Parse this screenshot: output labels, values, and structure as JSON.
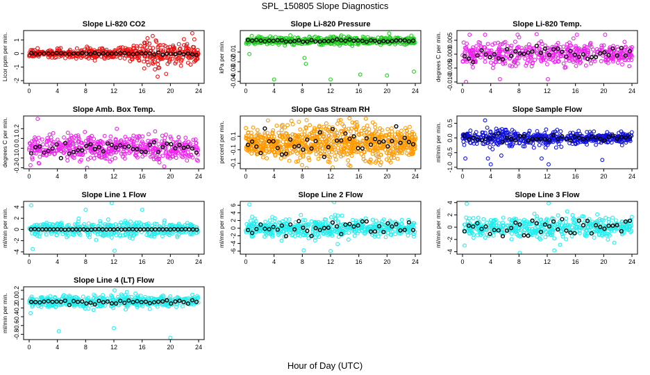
{
  "figure": {
    "title": "SPL_150805  Slope Diagnostics",
    "xlabel": "Hour of Day (UTC)"
  },
  "colors": {
    "co2": "#ee1111",
    "pressure": "#22cc22",
    "temp_li820": "#ee22ee",
    "temp_box": "#ee22ee",
    "rh": "#ff9900",
    "sample_flow": "#1111dd",
    "line1": "#22eeee",
    "line2": "#22eeee",
    "line3": "#22eeee",
    "line4": "#22eeee",
    "mean_marker": "#000000"
  },
  "chart_data": [
    {
      "id": "co2",
      "type": "scatter",
      "title": "Slope Li-820 CO2",
      "ylabel": "Licor ppm per min.",
      "xlim": [
        0,
        24
      ],
      "xticks": [
        0,
        4,
        8,
        12,
        16,
        20,
        24
      ],
      "ylim": [
        -2.2,
        1.7
      ],
      "yticks": [
        -2,
        -1,
        0,
        1
      ],
      "series": [
        {
          "name": "samples",
          "color_key": "co2",
          "n": 480,
          "x_range": [
            0,
            24
          ],
          "spread_envelope": [
            [
              0,
              0.3
            ],
            [
              6,
              0.35
            ],
            [
              12,
              0.4
            ],
            [
              15,
              0.7
            ],
            [
              18,
              1.0
            ],
            [
              22,
              0.9
            ],
            [
              24,
              0.5
            ]
          ],
          "outliers": [
            [
              17.5,
              1.3
            ],
            [
              23.1,
              1.5
            ],
            [
              18.2,
              -1.7
            ],
            [
              19.4,
              -1.5
            ],
            [
              16.3,
              -1.1
            ],
            [
              21.5,
              -0.9
            ],
            [
              23.4,
              -0.6
            ]
          ]
        },
        {
          "name": "hourly mean",
          "color_key": "mean_marker",
          "n": 40,
          "x_range": [
            0,
            24
          ],
          "spread_envelope": [
            [
              0,
              0.05
            ],
            [
              24,
              0.1
            ]
          ]
        }
      ]
    },
    {
      "id": "pressure",
      "type": "scatter",
      "title": "Slope Li-820 Pressure",
      "ylabel": "kPa per min.",
      "xlim": [
        0,
        24
      ],
      "xticks": [
        0,
        4,
        8,
        12,
        16,
        20,
        24
      ],
      "ylim": [
        -0.042,
        0.012
      ],
      "yticks": [
        -0.04,
        -0.03,
        -0.02,
        -0.01
      ],
      "series": [
        {
          "name": "samples",
          "color_key": "pressure",
          "n": 520,
          "x_range": [
            0,
            24
          ],
          "offset": 0.0015,
          "spread_envelope": [
            [
              0,
              0.004
            ],
            [
              12,
              0.005
            ],
            [
              24,
              0.004
            ]
          ],
          "outliers": [
            [
              0.5,
              -0.012
            ],
            [
              4.0,
              -0.038
            ],
            [
              8.3,
              -0.016
            ],
            [
              8.5,
              -0.022
            ],
            [
              12.0,
              -0.038
            ],
            [
              16.2,
              -0.033
            ],
            [
              20.0,
              -0.034
            ],
            [
              23.8,
              -0.03
            ],
            [
              20.3,
              0.009
            ],
            [
              6.3,
              0.007
            ]
          ]
        },
        {
          "name": "hourly mean",
          "color_key": "mean_marker",
          "n": 40,
          "x_range": [
            0,
            24
          ],
          "offset": 0.0015,
          "spread_envelope": [
            [
              0,
              0.0015
            ],
            [
              24,
              0.0015
            ]
          ]
        }
      ]
    },
    {
      "id": "temp_li820",
      "type": "scatter",
      "title": "Slope Li-820 Temp.",
      "ylabel": "degrees C per min.",
      "xlim": [
        0,
        24
      ],
      "xticks": [
        0,
        4,
        8,
        12,
        16,
        20,
        24
      ],
      "ylim": [
        -0.0105,
        0.0085
      ],
      "yticks": [
        -0.01,
        -0.005,
        0,
        0.005
      ],
      "series": [
        {
          "name": "samples",
          "color_key": "temp_li820",
          "n": 460,
          "x_range": [
            0,
            24
          ],
          "spread_envelope": [
            [
              0,
              0.005
            ],
            [
              12,
              0.005
            ],
            [
              24,
              0.004
            ]
          ],
          "outliers": [
            [
              0.5,
              -0.01
            ],
            [
              1.0,
              0.007
            ],
            [
              3.2,
              0.007
            ],
            [
              7.8,
              0.007
            ],
            [
              5.3,
              -0.009
            ],
            [
              12.1,
              -0.009
            ],
            [
              16.2,
              0.007
            ],
            [
              20.2,
              0.007
            ]
          ]
        },
        {
          "name": "hourly mean",
          "color_key": "mean_marker",
          "n": 40,
          "x_range": [
            0,
            24
          ],
          "spread_envelope": [
            [
              0,
              0.003
            ],
            [
              24,
              0.003
            ]
          ]
        }
      ]
    },
    {
      "id": "temp_box",
      "type": "scatter",
      "title": "Slope Amb. Box Temp.",
      "ylabel": "degrees C per min.",
      "xlim": [
        0,
        24
      ],
      "xticks": [
        0,
        4,
        8,
        12,
        16,
        20,
        24
      ],
      "ylim": [
        -0.21,
        0.33
      ],
      "yticks": [
        -0.2,
        -0.1,
        0,
        0.1,
        0.2
      ],
      "series": [
        {
          "name": "samples",
          "color_key": "temp_box",
          "n": 520,
          "x_range": [
            0,
            24
          ],
          "spread_envelope": [
            [
              0,
              0.14
            ],
            [
              12,
              0.15
            ],
            [
              24,
              0.13
            ]
          ],
          "outliers": [
            [
              1.2,
              0.3
            ],
            [
              8.2,
              -0.2
            ],
            [
              23.9,
              -0.13
            ]
          ]
        },
        {
          "name": "hourly mean",
          "color_key": "mean_marker",
          "n": 40,
          "x_range": [
            0,
            24
          ],
          "spread_envelope": [
            [
              0,
              0.08
            ],
            [
              24,
              0.08
            ]
          ]
        }
      ]
    },
    {
      "id": "rh",
      "type": "scatter",
      "title": "Slope Gas Stream RH",
      "ylabel": "percent per min.",
      "xlim": [
        0,
        24
      ],
      "xticks": [
        0,
        4,
        8,
        12,
        16,
        20,
        24
      ],
      "ylim": [
        -0.19,
        0.2
      ],
      "yticks": [
        -0.15,
        -0.05,
        0.05
      ],
      "series": [
        {
          "name": "samples",
          "color_key": "rh",
          "n": 820,
          "x_range": [
            0,
            24
          ],
          "spread_envelope": [
            [
              0,
              0.1
            ],
            [
              8,
              0.15
            ],
            [
              12,
              0.17
            ],
            [
              16,
              0.16
            ],
            [
              24,
              0.12
            ]
          ],
          "outliers": [
            [
              12.3,
              -0.18
            ],
            [
              17.0,
              0.18
            ],
            [
              14.8,
              -0.17
            ]
          ]
        },
        {
          "name": "hourly mean",
          "color_key": "mean_marker",
          "n": 40,
          "x_range": [
            0,
            24
          ],
          "spread_envelope": [
            [
              0,
              0.1
            ],
            [
              24,
              0.12
            ]
          ]
        }
      ]
    },
    {
      "id": "sample_flow",
      "type": "scatter",
      "title": "Slope Sample Flow",
      "ylabel": "ml/min per min.",
      "xlim": [
        0,
        24
      ],
      "xticks": [
        0,
        4,
        8,
        12,
        16,
        20,
        24
      ],
      "ylim": [
        -1.05,
        0.75
      ],
      "yticks": [
        -1.0,
        -0.5,
        0.0,
        0.5
      ],
      "series": [
        {
          "name": "samples",
          "color_key": "sample_flow",
          "n": 520,
          "x_range": [
            0,
            24
          ],
          "spread_envelope": [
            [
              0,
              0.25
            ],
            [
              3,
              0.4
            ],
            [
              8,
              0.3
            ],
            [
              16,
              0.25
            ],
            [
              24,
              0.2
            ]
          ],
          "outliers": [
            [
              3.2,
              0.6
            ],
            [
              3.6,
              -0.7
            ],
            [
              4.0,
              -0.9
            ],
            [
              5.5,
              -0.6
            ],
            [
              11.2,
              -0.7
            ],
            [
              12.2,
              -0.9
            ],
            [
              19.8,
              -0.75
            ],
            [
              0.4,
              -0.7
            ]
          ]
        },
        {
          "name": "hourly mean",
          "color_key": "mean_marker",
          "n": 40,
          "x_range": [
            0,
            24
          ],
          "spread_envelope": [
            [
              0,
              0.15
            ],
            [
              24,
              0.15
            ]
          ]
        }
      ]
    },
    {
      "id": "line1",
      "type": "scatter",
      "title": "Slope Line 1 Flow",
      "ylabel": "ml/min per min.",
      "xlim": [
        0,
        24
      ],
      "xticks": [
        0,
        4,
        8,
        12,
        16,
        20,
        24
      ],
      "ylim": [
        -4.4,
        5.0
      ],
      "yticks": [
        -4,
        -2,
        0,
        2,
        4
      ],
      "series": [
        {
          "name": "samples",
          "color_key": "line1",
          "n": 440,
          "x_range": [
            0,
            24
          ],
          "spread_envelope": [
            [
              0,
              1.3
            ],
            [
              12,
              1.6
            ],
            [
              24,
              1.2
            ]
          ],
          "outliers": [
            [
              0.3,
              4.3
            ],
            [
              11.7,
              4.7
            ],
            [
              12.1,
              -3.8
            ],
            [
              8.0,
              3.5
            ],
            [
              16.0,
              3.5
            ],
            [
              0.5,
              -3.5
            ]
          ]
        },
        {
          "name": "hourly mean",
          "color_key": "mean_marker",
          "n": 45,
          "x_range": [
            0,
            24
          ],
          "spread_envelope": [
            [
              0,
              0.05
            ],
            [
              24,
              0.05
            ]
          ]
        }
      ]
    },
    {
      "id": "line2",
      "type": "scatter",
      "title": "Slope Line 2 Flow",
      "ylabel": "ml/min per min.",
      "xlim": [
        0,
        24
      ],
      "xticks": [
        0,
        4,
        8,
        12,
        16,
        20,
        24
      ],
      "ylim": [
        -6.8,
        7.0
      ],
      "yticks": [
        -6,
        -4,
        -2,
        0,
        2,
        4,
        6
      ],
      "series": [
        {
          "name": "samples",
          "color_key": "line2",
          "n": 500,
          "x_range": [
            0,
            24
          ],
          "spread_envelope": [
            [
              0,
              2.0
            ],
            [
              8,
              2.6
            ],
            [
              12,
              3.0
            ],
            [
              16,
              2.5
            ],
            [
              24,
              2.0
            ]
          ],
          "outliers": [
            [
              12.5,
              6.8
            ],
            [
              8.2,
              -5.8
            ],
            [
              0.5,
              6.2
            ],
            [
              12.0,
              -6.0
            ]
          ]
        },
        {
          "name": "hourly mean",
          "color_key": "mean_marker",
          "n": 40,
          "x_range": [
            0,
            24
          ],
          "spread_envelope": [
            [
              0,
              2.2
            ],
            [
              24,
              2.0
            ]
          ]
        }
      ]
    },
    {
      "id": "line3",
      "type": "scatter",
      "title": "Slope Line 3 Flow",
      "ylabel": "ml/min per min.",
      "xlim": [
        0,
        24
      ],
      "xticks": [
        0,
        4,
        8,
        12,
        16,
        20,
        24
      ],
      "ylim": [
        -4.4,
        4.2
      ],
      "yticks": [
        -4,
        -2,
        0,
        2,
        4
      ],
      "series": [
        {
          "name": "samples",
          "color_key": "line3",
          "n": 500,
          "x_range": [
            0,
            24
          ],
          "spread_envelope": [
            [
              0,
              1.6
            ],
            [
              8,
              1.8
            ],
            [
              12,
              2.0
            ],
            [
              24,
              1.5
            ]
          ],
          "outliers": [
            [
              0.6,
              3.8
            ],
            [
              8.1,
              -4.2
            ],
            [
              12.2,
              3.9
            ],
            [
              13.0,
              -3.8
            ],
            [
              0.3,
              -3.0
            ]
          ]
        },
        {
          "name": "hourly mean",
          "color_key": "mean_marker",
          "n": 40,
          "x_range": [
            0,
            24
          ],
          "spread_envelope": [
            [
              0,
              1.4
            ],
            [
              24,
              1.3
            ]
          ]
        }
      ]
    },
    {
      "id": "line4",
      "type": "scatter",
      "title": "Slope Line 4 (LT) Flow",
      "ylabel": "ml/min per min.",
      "xlim": [
        0,
        24
      ],
      "xticks": [
        0,
        4,
        8,
        12,
        16,
        20,
        24
      ],
      "ylim": [
        -0.92,
        0.28
      ],
      "yticks": [
        -0.8,
        -0.6,
        -0.4,
        -0.2,
        0.0,
        0.2
      ],
      "series": [
        {
          "name": "samples",
          "color_key": "line4",
          "n": 460,
          "x_range": [
            0,
            24
          ],
          "offset": -0.05,
          "spread_envelope": [
            [
              0,
              0.14
            ],
            [
              12,
              0.15
            ],
            [
              24,
              0.13
            ]
          ],
          "outliers": [
            [
              4.2,
              -0.73
            ],
            [
              12.0,
              -0.66
            ],
            [
              20.0,
              -0.88
            ],
            [
              0.2,
              -0.32
            ],
            [
              12.1,
              0.2
            ]
          ]
        },
        {
          "name": "hourly mean",
          "color_key": "mean_marker",
          "n": 40,
          "x_range": [
            0,
            24
          ],
          "offset": -0.06,
          "spread_envelope": [
            [
              0,
              0.06
            ],
            [
              24,
              0.06
            ]
          ]
        }
      ]
    }
  ]
}
